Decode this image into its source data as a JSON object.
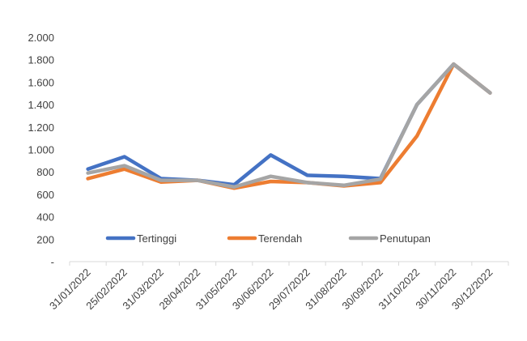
{
  "chart_data": {
    "type": "line",
    "title": "",
    "xlabel": "",
    "ylabel": "",
    "ylim": [
      0,
      2000
    ],
    "yticks": [
      0,
      200,
      400,
      600,
      800,
      1000,
      1200,
      1400,
      1600,
      1800,
      2000
    ],
    "ytick_labels": [
      "-",
      "200",
      "400",
      "600",
      "800",
      "1.000",
      "1.200",
      "1.400",
      "1.600",
      "1.800",
      "2.000"
    ],
    "categories": [
      "31/01/2022",
      "25/02/2022",
      "31/03/2022",
      "28/04/2022",
      "31/05/2022",
      "30/06/2022",
      "29/07/2022",
      "31/08/2022",
      "30/09/2022",
      "31/10/2022",
      "30/11/2022",
      "30/12/2022"
    ],
    "grid": false,
    "legend_position": "bottom-inside",
    "series": [
      {
        "name": "Tertinggi",
        "color": "#4472C4",
        "values": [
          825,
          935,
          740,
          725,
          685,
          950,
          770,
          760,
          740,
          1400,
          1760,
          1505
        ]
      },
      {
        "name": "Terendah",
        "color": "#ED7D31",
        "values": [
          740,
          825,
          710,
          725,
          655,
          715,
          705,
          675,
          705,
          1120,
          1760,
          1505
        ]
      },
      {
        "name": "Penutupan",
        "color": "#A5A5A5",
        "values": [
          790,
          855,
          725,
          725,
          665,
          760,
          705,
          680,
          735,
          1400,
          1760,
          1505
        ]
      }
    ]
  }
}
